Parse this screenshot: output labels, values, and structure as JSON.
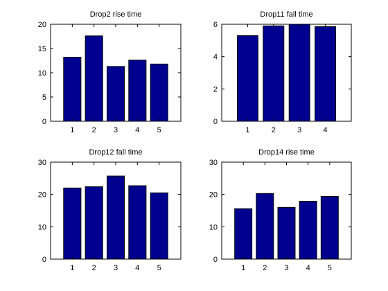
{
  "colors": {
    "bar": "#00008F",
    "background": "#FFFFFF"
  },
  "chart_data": [
    {
      "type": "bar",
      "title": "Drop2 rise time",
      "categories": [
        "1",
        "2",
        "3",
        "4",
        "5"
      ],
      "values": [
        13.2,
        17.6,
        11.3,
        12.6,
        11.8
      ],
      "xlim": [
        0,
        6
      ],
      "ylim": [
        0,
        20
      ],
      "yticks": [
        0,
        5,
        10,
        15,
        20
      ],
      "grid": false
    },
    {
      "type": "bar",
      "title": "Drop11 fall time",
      "categories": [
        "1",
        "2",
        "3",
        "4"
      ],
      "values": [
        5.3,
        5.9,
        6.0,
        5.85
      ],
      "xlim": [
        0,
        5
      ],
      "ylim": [
        0,
        6
      ],
      "yticks": [
        0,
        2,
        4,
        6
      ],
      "grid": false
    },
    {
      "type": "bar",
      "title": "Drop12 fall time",
      "categories": [
        "1",
        "2",
        "3",
        "4",
        "5"
      ],
      "values": [
        22.0,
        22.4,
        25.7,
        22.7,
        20.5
      ],
      "xlim": [
        0,
        6
      ],
      "ylim": [
        0,
        30
      ],
      "yticks": [
        0,
        10,
        20,
        30
      ],
      "grid": false
    },
    {
      "type": "bar",
      "title": "Drop14 rise time",
      "categories": [
        "1",
        "2",
        "3",
        "4",
        "5"
      ],
      "values": [
        15.6,
        20.3,
        16.0,
        17.9,
        19.4
      ],
      "xlim": [
        0,
        6
      ],
      "ylim": [
        0,
        30
      ],
      "yticks": [
        0,
        10,
        20,
        30
      ],
      "grid": false
    }
  ]
}
